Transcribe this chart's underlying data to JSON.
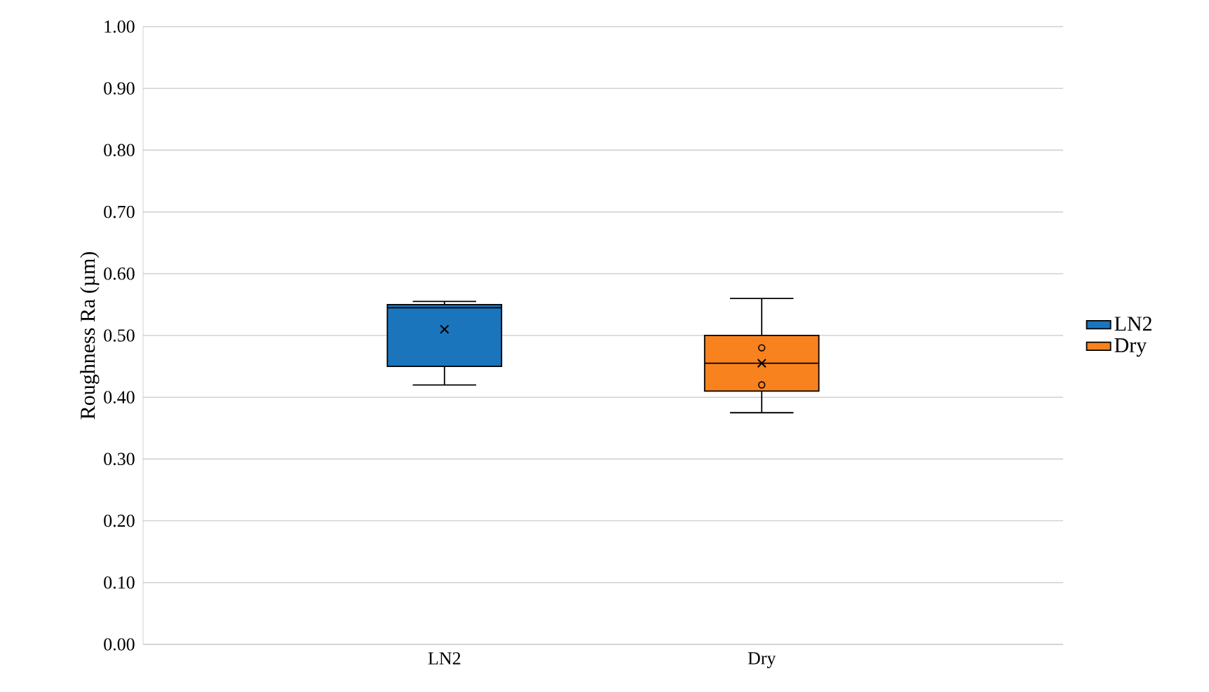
{
  "chart_data": {
    "type": "box",
    "ylabel": "Roughness Ra (µm)",
    "categories": [
      "LN2",
      "Dry"
    ],
    "series": [
      {
        "name": "LN2",
        "color": "#1b75bc",
        "boxes": [
          {
            "low": 0.42,
            "q1": 0.45,
            "median": 0.545,
            "q3": 0.55,
            "high": 0.555,
            "mean": 0.51
          },
          null
        ]
      },
      {
        "name": "Dry",
        "color": "#f7821e",
        "boxes": [
          null,
          {
            "low": 0.375,
            "q1": 0.41,
            "median": 0.455,
            "q3": 0.5,
            "high": 0.56,
            "mean": 0.455,
            "outliers": [
              0.48,
              0.42
            ]
          }
        ]
      }
    ],
    "ylim": [
      0,
      1
    ],
    "yticks": [
      {
        "value": 0,
        "label": "0.00"
      },
      {
        "value": 0.1,
        "label": "0.10"
      },
      {
        "value": 0.2,
        "label": "0.20"
      },
      {
        "value": 0.3,
        "label": "0.30"
      },
      {
        "value": 0.4,
        "label": "0.40"
      },
      {
        "value": 0.5,
        "label": "0.50"
      },
      {
        "value": 0.6,
        "label": "0.60"
      },
      {
        "value": 0.7,
        "label": "0.70"
      },
      {
        "value": 0.8,
        "label": "0.80"
      },
      {
        "value": 0.9,
        "label": "0.90"
      },
      {
        "value": 1,
        "label": "1.00"
      }
    ],
    "grid": "y",
    "legend": "right",
    "marker": "cross"
  }
}
